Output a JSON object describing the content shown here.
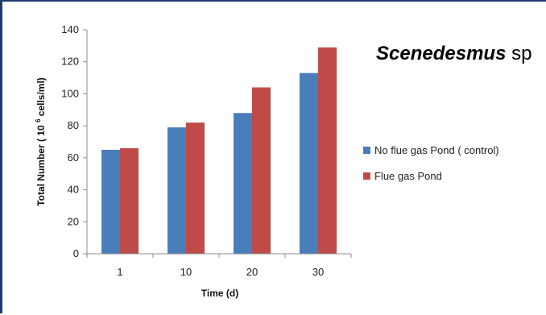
{
  "chart_data": {
    "type": "bar",
    "title": "Scenedesmus sp",
    "title_italic_part": "Scenedesmus",
    "title_plain_part": " sp",
    "xlabel": "Time (d)",
    "ylabel_prefix": "Total Number ( 10",
    "ylabel_superscript": "6",
    "ylabel_suffix": " cells/ml)",
    "categories": [
      "1",
      "10",
      "20",
      "30"
    ],
    "ylim": [
      0,
      140
    ],
    "yticks": [
      0,
      20,
      40,
      60,
      80,
      100,
      120,
      140
    ],
    "grid": false,
    "legend_position": "right",
    "series": [
      {
        "name": "No flue gas Pond ( control)",
        "color": "#4a7ebb",
        "values": [
          65,
          79,
          88,
          113
        ]
      },
      {
        "name": "Flue gas Pond",
        "color": "#be4b48",
        "values": [
          66,
          82,
          104,
          129
        ]
      }
    ]
  }
}
